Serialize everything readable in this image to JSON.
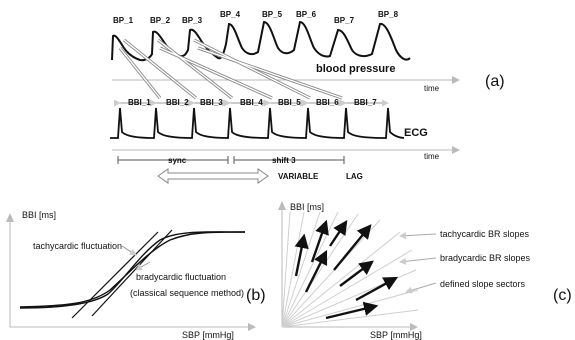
{
  "panel_a": {
    "bp_labels": [
      "BP_1",
      "BP_2",
      "BP_3",
      "BP_4",
      "BP_5",
      "BP_6",
      "BP_7",
      "BP_8"
    ],
    "bbi_labels": [
      "BBI_1",
      "BBI_2",
      "BBI_3",
      "BBI_4",
      "BBI_5",
      "BBI_6",
      "BBI_7"
    ],
    "blood_pressure_label": "blood pressure",
    "ecg_label": "ECG",
    "time_label_1": "time",
    "time_label_2": "time",
    "panel_label": "(a)",
    "sync_label": "sync",
    "shift_label": "shift 3",
    "variable_label": "VARIABLE",
    "lag_label": "LAG"
  },
  "panel_b": {
    "ylabel": "BBI [ms]",
    "xlabel": "SBP [mmHg]",
    "tachy_label": "tachycardic fluctuation",
    "brady_label": "bradycardic fluctuation",
    "method_label": "(classical sequence method)",
    "panel_label": "(b)"
  },
  "panel_c": {
    "ylabel": "BBI [ms]",
    "xlabel": "SBP [mmHg]",
    "tachy_label": "tachycardic BR slopes",
    "brady_label": "bradycardic BR slopes",
    "sector_label": "defined slope sectors",
    "panel_label": "(c)"
  },
  "colors": {
    "line": "#111111",
    "guide": "#b8b8b8",
    "arrow_outline": "#888888"
  }
}
